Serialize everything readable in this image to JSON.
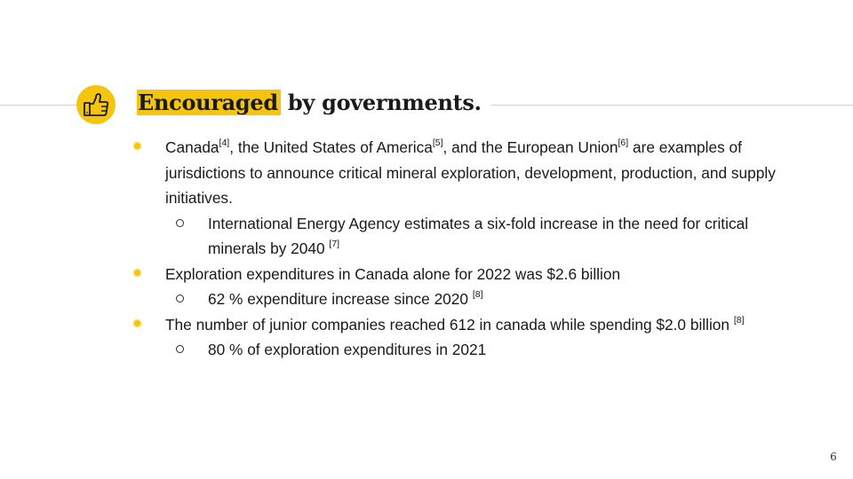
{
  "slide": {
    "title": {
      "highlight": "Encouraged",
      "rest": " by governments."
    },
    "icon": "thumbs-up-icon",
    "accent_color": "#f5c40f",
    "page_number": "6",
    "bullets": [
      {
        "level": 1,
        "parts": [
          "Canada",
          "[4]",
          ", the United States of America",
          "[5]",
          ", and the European Union",
          "[6]",
          " are examples of jurisdictions to announce critical mineral exploration, development, production, and supply initiatives."
        ]
      },
      {
        "level": 2,
        "parts": [
          "International Energy Agency estimates a six-fold increase in the need for critical minerals by 2040 ",
          "[7]"
        ]
      },
      {
        "level": 1,
        "parts": [
          "Exploration expenditures in Canada alone for 2022 was $2.6 billion"
        ]
      },
      {
        "level": 2,
        "parts": [
          "62 % expenditure increase since 2020 ",
          "[8]"
        ]
      },
      {
        "level": 1,
        "parts": [
          "The number of junior companies reached 612 in canada while spending $2.0 billion ",
          "[8]"
        ]
      },
      {
        "level": 2,
        "parts": [
          "80 % of exploration expenditures in 2021"
        ]
      }
    ]
  }
}
